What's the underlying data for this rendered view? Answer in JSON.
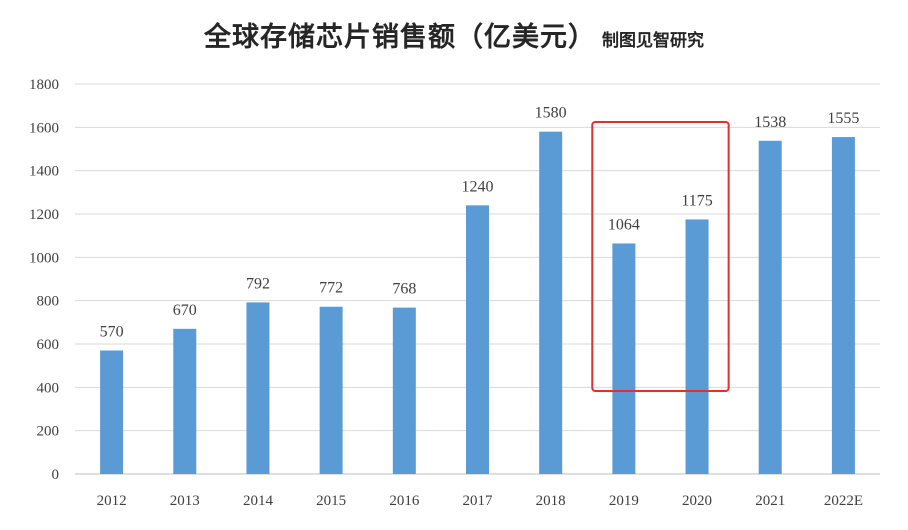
{
  "chart_data": {
    "type": "bar",
    "title": "全球存储芯片销售额（亿美元）",
    "subtitle": "制图见智研究",
    "categories": [
      "2012",
      "2013",
      "2014",
      "2015",
      "2016",
      "2017",
      "2018",
      "2019",
      "2020",
      "2021",
      "2022E"
    ],
    "series": [
      {
        "values": [
          570,
          670,
          792,
          772,
          768,
          1240,
          1580,
          1064,
          1175,
          1538,
          1555
        ]
      }
    ],
    "data_labels": [
      "570",
      "670",
      "792",
      "772",
      "768",
      "1240",
      "1580",
      "1064",
      "1175",
      "1538",
      "1555"
    ],
    "y_ticks": [
      "0",
      "200",
      "400",
      "600",
      "800",
      "1000",
      "1200",
      "1400",
      "1600",
      "1800"
    ],
    "ylim": [
      0,
      1800
    ],
    "grid": true,
    "bar_color": "#5b9bd5",
    "grid_color": "#d9d9d9",
    "highlight": {
      "categories": [
        "2019",
        "2020"
      ],
      "color": "#e03030"
    }
  }
}
